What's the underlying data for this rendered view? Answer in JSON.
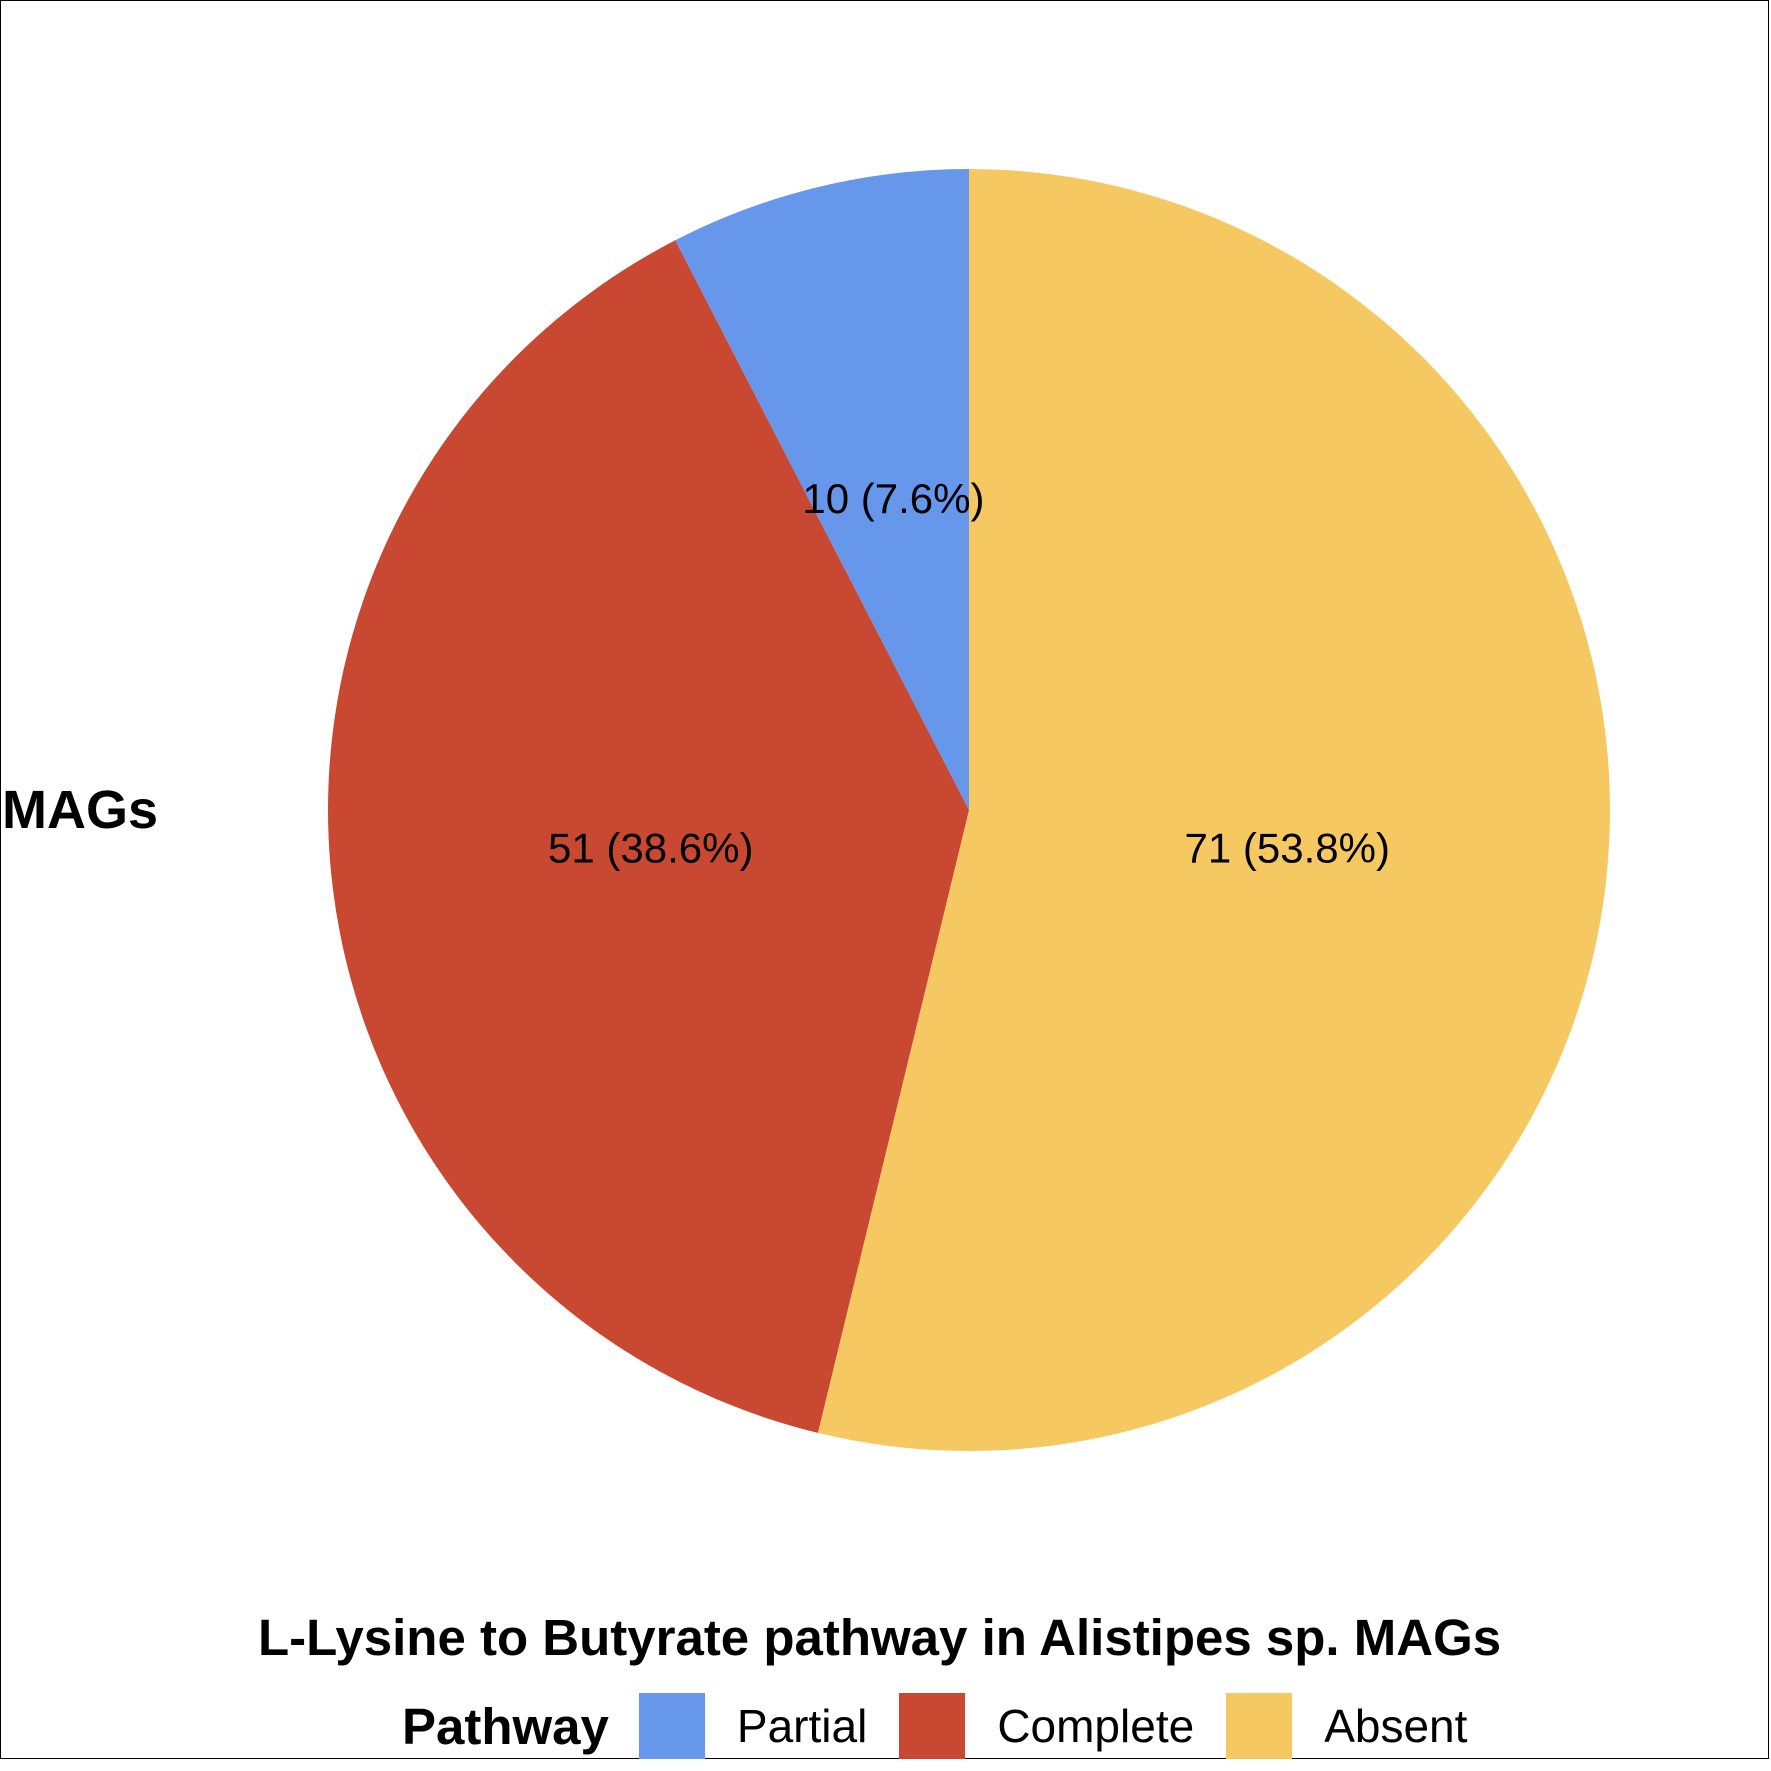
{
  "chart_data": {
    "type": "pie",
    "title": "L-Lysine to Butyrate pathway in Alistipes sp. MAGs",
    "ylabel": "MAGs",
    "legend_title": "Pathway",
    "legend_position": "bottom",
    "start_angle": "top",
    "direction": "clockwise",
    "series": [
      {
        "name": "Absent",
        "value": 71,
        "percent": 53.8,
        "label": "71 (53.8%)",
        "color": "#F6C862"
      },
      {
        "name": "Complete",
        "value": 51,
        "percent": 38.6,
        "label": "51 (38.6%)",
        "color": "#C84831"
      },
      {
        "name": "Partial",
        "value": 10,
        "percent": 7.6,
        "label": "10 (7.6%)",
        "color": "#6797EA"
      }
    ],
    "legend": [
      {
        "name": "Partial",
        "color": "#6797EA"
      },
      {
        "name": "Complete",
        "color": "#C84831"
      },
      {
        "name": "Absent",
        "color": "#F6C862"
      }
    ]
  }
}
